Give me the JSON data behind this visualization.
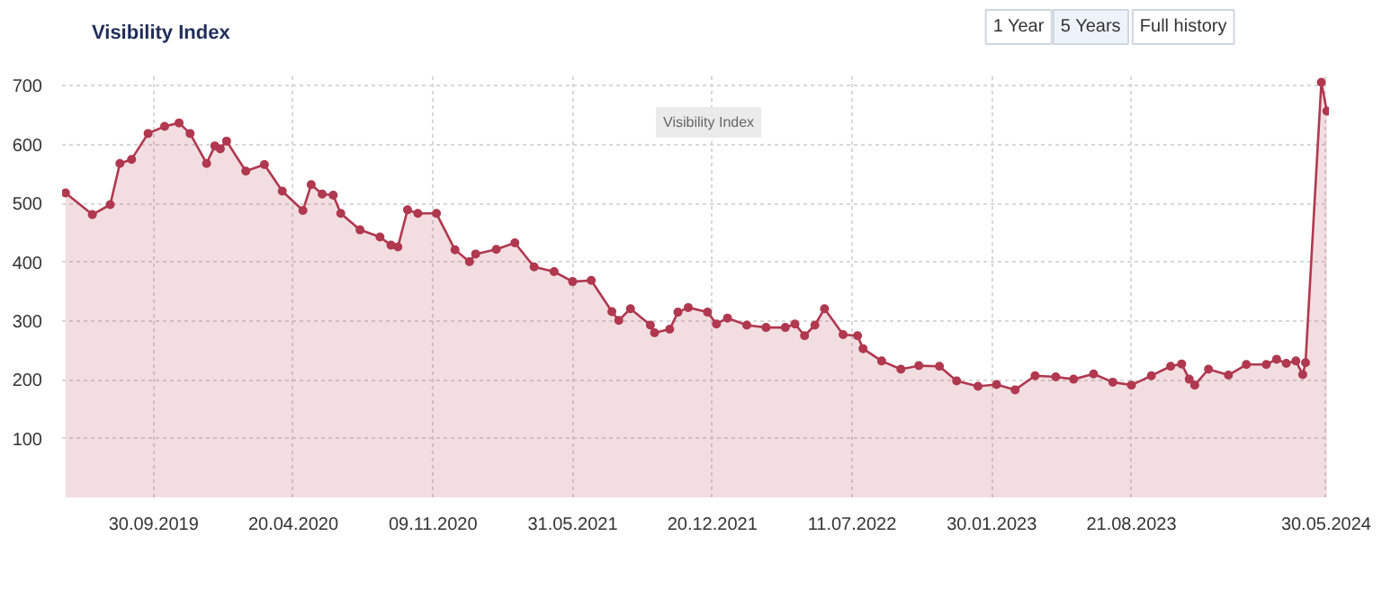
{
  "chart_data": {
    "type": "area",
    "title": "Visibility Index",
    "annotations": [
      "1 Year",
      "5 Years",
      "Full history",
      "Visibility Index"
    ],
    "x": [
      "2019-05-25",
      "2019-07-03",
      "2019-07-29",
      "2019-08-12",
      "2019-08-29",
      "2019-09-22",
      "2019-10-16",
      "2019-11-06",
      "2019-11-22",
      "2019-12-16",
      "2019-12-28",
      "2020-01-05",
      "2020-01-14",
      "2020-02-11",
      "2020-03-09",
      "2020-04-04",
      "2020-05-04",
      "2020-05-16",
      "2020-06-01",
      "2020-06-17",
      "2020-06-28",
      "2020-07-26",
      "2020-08-24",
      "2020-09-09",
      "2020-09-19",
      "2020-10-03",
      "2020-10-18",
      "2020-11-14",
      "2020-12-11",
      "2021-01-01",
      "2021-01-10",
      "2021-02-09",
      "2021-03-08",
      "2021-04-05",
      "2021-05-04",
      "2021-05-31",
      "2021-06-27",
      "2021-07-27",
      "2021-08-06",
      "2021-08-23",
      "2021-09-21",
      "2021-09-27",
      "2021-10-19",
      "2021-10-31",
      "2021-11-15",
      "2021-12-13",
      "2021-12-26",
      "2022-01-11",
      "2022-02-08",
      "2022-03-08",
      "2022-04-05",
      "2022-04-19",
      "2022-05-03",
      "2022-05-18",
      "2022-06-01",
      "2022-06-28",
      "2022-07-19",
      "2022-07-27",
      "2022-08-23",
      "2022-09-20",
      "2022-10-16",
      "2022-11-15",
      "2022-12-10",
      "2023-01-10",
      "2023-02-06",
      "2023-03-05",
      "2023-04-03",
      "2023-05-03",
      "2023-05-29",
      "2023-06-27",
      "2023-07-25",
      "2023-08-21",
      "2023-09-19",
      "2023-10-17",
      "2023-11-02",
      "2023-11-13",
      "2023-11-21",
      "2023-12-11",
      "2024-01-09",
      "2024-02-04",
      "2024-03-04",
      "2024-03-19",
      "2024-04-02",
      "2024-04-16",
      "2024-04-26",
      "2024-04-30",
      "2024-05-23",
      "2024-05-31"
    ],
    "series": [
      {
        "color": "#b0384f",
        "values": [
          518,
          481,
          498,
          568,
          575,
          619,
          631,
          637,
          619,
          568,
          598,
          593,
          606,
          555,
          566,
          521,
          488,
          532,
          516,
          514,
          483,
          455,
          443,
          429,
          426,
          489,
          483,
          483,
          421,
          401,
          414,
          422,
          433,
          392,
          384,
          367,
          369,
          316,
          301,
          321,
          293,
          280,
          286,
          315,
          323,
          315,
          295,
          305,
          293,
          289,
          289,
          295,
          275,
          293,
          321,
          277,
          275,
          253,
          232,
          218,
          224,
          223,
          198,
          189,
          192,
          183,
          207,
          205,
          201,
          210,
          196,
          191,
          207,
          223,
          227,
          201,
          191,
          218,
          208,
          226,
          226,
          235,
          228,
          232,
          209,
          229,
          706,
          657
        ]
      }
    ],
    "xlim": [
      "2019-05-20",
      "2024-06-03"
    ],
    "xticks": [
      {
        "value": "2019-09-30",
        "label": "30.09.2019"
      },
      {
        "value": "2020-04-20",
        "label": "20.04.2020"
      },
      {
        "value": "2020-11-09",
        "label": "09.11.2020"
      },
      {
        "value": "2021-05-31",
        "label": "31.05.2021"
      },
      {
        "value": "2021-12-20",
        "label": "20.12.2021"
      },
      {
        "value": "2022-07-11",
        "label": "11.07.2022"
      },
      {
        "value": "2023-01-30",
        "label": "30.01.2023"
      },
      {
        "value": "2023-08-21",
        "label": "21.08.2023"
      },
      {
        "value": "2024-05-30",
        "label": "30.05.2024"
      }
    ],
    "ylim": [
      0,
      716
    ],
    "yticks": [
      100,
      200,
      300,
      400,
      500,
      600,
      700
    ],
    "grid": true,
    "marker": "circle",
    "line_style": "solid"
  }
}
